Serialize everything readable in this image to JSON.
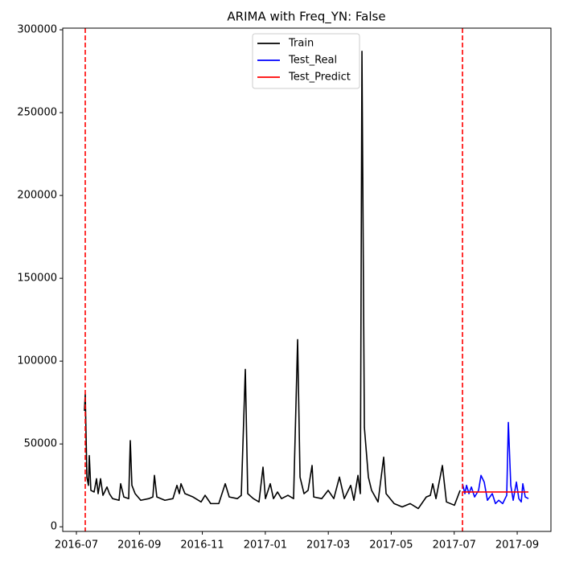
{
  "chart_data": {
    "type": "line",
    "title": "ARIMA with Freq_YN: False",
    "xlim": [
      2016.4638,
      2017.756
    ],
    "ylim": [
      -2800,
      301000
    ],
    "xticks": [
      {
        "value": 2016.5,
        "label": "2016-07"
      },
      {
        "value": 2016.6667,
        "label": "2016-09"
      },
      {
        "value": 2016.8333,
        "label": "2016-11"
      },
      {
        "value": 2017.0,
        "label": "2017-01"
      },
      {
        "value": 2017.1667,
        "label": "2017-03"
      },
      {
        "value": 2017.3333,
        "label": "2017-05"
      },
      {
        "value": 2017.5,
        "label": "2017-07"
      },
      {
        "value": 2017.6667,
        "label": "2017-09"
      }
    ],
    "yticks": [
      0,
      50000,
      100000,
      150000,
      200000,
      250000,
      300000
    ],
    "legend": "upper center",
    "vlines": [
      2016.5234,
      2017.5219
    ],
    "vline_color": "#ff0000",
    "series": [
      {
        "name": "Train",
        "color": "#000000",
        "x": [
          2016.5213,
          2016.5234,
          2016.5277,
          2016.5319,
          2016.5341,
          2016.5383,
          2016.5468,
          2016.5532,
          2016.5575,
          2016.5639,
          2016.5703,
          2016.5809,
          2016.5873,
          2016.5958,
          2016.6128,
          2016.6171,
          2016.6256,
          2016.6384,
          2016.6426,
          2016.6469,
          2016.6554,
          2016.6703,
          2016.6916,
          2016.7023,
          2016.7065,
          2016.7129,
          2016.7342,
          2016.7555,
          2016.7661,
          2016.7725,
          2016.7768,
          2016.7874,
          2016.8087,
          2016.83,
          2016.8406,
          2016.8555,
          2016.8768,
          2016.8939,
          2016.9045,
          2016.9258,
          2016.9364,
          2016.9471,
          2016.9535,
          2016.9684,
          2016.9833,
          2016.9939,
          2017.0003,
          2017.0131,
          2017.0216,
          2017.0323,
          2017.0429,
          2017.0599,
          2017.0748,
          2017.0855,
          2017.0919,
          2017.1025,
          2017.1132,
          2017.1238,
          2017.1281,
          2017.1493,
          2017.1664,
          2017.1813,
          2017.1962,
          2017.209,
          2017.226,
          2017.2345,
          2017.2452,
          2017.2515,
          2017.2558,
          2017.2622,
          2017.2728,
          2017.2813,
          2017.2984,
          2017.3133,
          2017.3197,
          2017.341,
          2017.3623,
          2017.3835,
          2017.4048,
          2017.4261,
          2017.4368,
          2017.4432,
          2017.4517,
          2017.4687,
          2017.4794,
          2017.5006,
          2017.5156
        ],
        "values": [
          70000,
          80000,
          30000,
          25000,
          43000,
          22000,
          21000,
          29000,
          20000,
          29000,
          19000,
          24000,
          20000,
          17000,
          16000,
          26000,
          18000,
          17000,
          52000,
          25000,
          20000,
          16000,
          17000,
          18000,
          31000,
          18000,
          16000,
          17000,
          25000,
          20000,
          26000,
          20000,
          18000,
          15000,
          19000,
          14000,
          14000,
          26000,
          18000,
          17000,
          19000,
          95000,
          20000,
          17000,
          15000,
          36000,
          17000,
          26000,
          17000,
          21000,
          17000,
          19000,
          17000,
          113000,
          30000,
          20000,
          22000,
          37000,
          18000,
          17000,
          22000,
          17000,
          30000,
          17000,
          25000,
          16000,
          31000,
          20000,
          287000,
          60000,
          30000,
          22000,
          15000,
          42000,
          20000,
          14000,
          12000,
          14000,
          11000,
          18000,
          19000,
          26000,
          17000,
          37000,
          15000,
          13000,
          22000
        ]
      },
      {
        "name": "Test_Real",
        "color": "#0000ff",
        "x": [
          2017.5219,
          2017.5283,
          2017.5326,
          2017.539,
          2017.5454,
          2017.5539,
          2017.5645,
          2017.5709,
          2017.5794,
          2017.5879,
          2017.6007,
          2017.6092,
          2017.6177,
          2017.6283,
          2017.639,
          2017.6433,
          2017.6497,
          2017.6561,
          2017.6646,
          2017.671,
          2017.6774,
          2017.6816,
          2017.688,
          2017.6965
        ],
        "values": [
          26000,
          20000,
          25000,
          20000,
          24000,
          18000,
          22000,
          31000,
          27000,
          16000,
          20000,
          14000,
          16000,
          14000,
          19000,
          63000,
          25000,
          16000,
          27000,
          17000,
          15000,
          26000,
          18000,
          17000
        ]
      },
      {
        "name": "Test_Predict",
        "color": "#ff0000",
        "x": [
          2017.5219,
          2017.6965
        ],
        "values": [
          21000,
          21000
        ]
      }
    ]
  }
}
